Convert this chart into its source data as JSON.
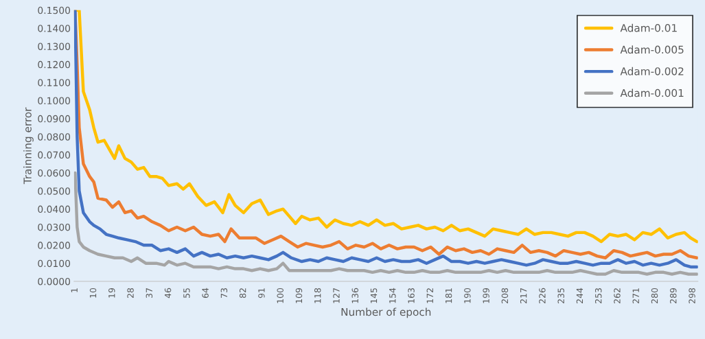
{
  "chart_data": {
    "type": "line",
    "xlabel": "Number of epoch",
    "ylabel": "Trainning error",
    "xlim": [
      0.5,
      300.5
    ],
    "xticks": [
      1,
      10,
      19,
      28,
      37,
      46,
      55,
      64,
      73,
      82,
      91,
      100,
      109,
      118,
      127,
      136,
      145,
      154,
      163,
      172,
      181,
      190,
      199,
      208,
      217,
      226,
      235,
      244,
      253,
      262,
      271,
      280,
      289,
      298
    ],
    "ylim": [
      0,
      0.15
    ],
    "yticks": [
      {
        "value": 0,
        "label": "0.0000"
      },
      {
        "value": 0.01,
        "label": "0.0100"
      },
      {
        "value": 0.02,
        "label": "0.0200"
      },
      {
        "value": 0.03,
        "label": "0.0300"
      },
      {
        "value": 0.04,
        "label": "0.0400"
      },
      {
        "value": 0.05,
        "label": "0.0500"
      },
      {
        "value": 0.06,
        "label": "0.0600"
      },
      {
        "value": 0.07,
        "label": "0.0700"
      },
      {
        "value": 0.08,
        "label": "0.0800"
      },
      {
        "value": 0.09,
        "label": "0.0900"
      },
      {
        "value": 0.1,
        "label": "0.1000"
      },
      {
        "value": 0.11,
        "label": "0.1100"
      },
      {
        "value": 0.12,
        "label": "0.1200"
      },
      {
        "value": 0.13,
        "label": "0.1300"
      },
      {
        "value": 0.14,
        "label": "0.1400"
      },
      {
        "value": 0.15,
        "label": "0.1500"
      }
    ],
    "grid": false,
    "legend": "top right",
    "marker": "none",
    "line_style": "solid",
    "series": [
      {
        "name": "Adam-0.01",
        "color": "#ffc000",
        "x": [
          1,
          3,
          5,
          8,
          10,
          12,
          15,
          18,
          20,
          22,
          25,
          28,
          31,
          34,
          37,
          40,
          43,
          46,
          50,
          53,
          56,
          60,
          64,
          68,
          72,
          75,
          78,
          82,
          86,
          90,
          94,
          98,
          101,
          104,
          107,
          110,
          114,
          118,
          122,
          126,
          130,
          134,
          138,
          142,
          146,
          150,
          154,
          158,
          162,
          166,
          170,
          174,
          178,
          182,
          186,
          190,
          194,
          198,
          202,
          206,
          210,
          214,
          218,
          222,
          226,
          230,
          234,
          238,
          242,
          246,
          250,
          254,
          258,
          262,
          266,
          270,
          274,
          278,
          282,
          286,
          290,
          294,
          297,
          300
        ],
        "values": [
          0.15,
          0.15,
          0.105,
          0.095,
          0.085,
          0.077,
          0.078,
          0.072,
          0.068,
          0.075,
          0.068,
          0.066,
          0.062,
          0.063,
          0.058,
          0.058,
          0.057,
          0.053,
          0.054,
          0.051,
          0.054,
          0.047,
          0.042,
          0.044,
          0.038,
          0.048,
          0.042,
          0.038,
          0.043,
          0.045,
          0.037,
          0.039,
          0.04,
          0.036,
          0.032,
          0.036,
          0.034,
          0.035,
          0.03,
          0.034,
          0.032,
          0.031,
          0.033,
          0.031,
          0.034,
          0.031,
          0.032,
          0.029,
          0.03,
          0.031,
          0.029,
          0.03,
          0.028,
          0.031,
          0.028,
          0.029,
          0.027,
          0.025,
          0.029,
          0.028,
          0.027,
          0.026,
          0.029,
          0.026,
          0.027,
          0.027,
          0.026,
          0.025,
          0.027,
          0.027,
          0.025,
          0.022,
          0.026,
          0.025,
          0.026,
          0.023,
          0.027,
          0.026,
          0.029,
          0.024,
          0.026,
          0.027,
          0.024,
          0.022
        ]
      },
      {
        "name": "Adam-0.005",
        "color": "#ed7d31",
        "x": [
          1,
          2,
          3,
          5,
          8,
          10,
          12,
          16,
          19,
          22,
          25,
          28,
          31,
          34,
          38,
          42,
          46,
          50,
          54,
          58,
          62,
          66,
          70,
          73,
          76,
          80,
          84,
          88,
          92,
          96,
          100,
          104,
          108,
          112,
          116,
          120,
          124,
          128,
          132,
          136,
          140,
          144,
          148,
          152,
          156,
          160,
          164,
          168,
          172,
          176,
          180,
          184,
          188,
          192,
          196,
          200,
          204,
          208,
          212,
          216,
          220,
          224,
          228,
          232,
          236,
          240,
          244,
          248,
          252,
          256,
          260,
          264,
          268,
          272,
          276,
          280,
          284,
          288,
          292,
          296,
          300
        ],
        "values": [
          0.15,
          0.12,
          0.085,
          0.065,
          0.058,
          0.055,
          0.046,
          0.045,
          0.041,
          0.044,
          0.038,
          0.039,
          0.035,
          0.036,
          0.033,
          0.031,
          0.028,
          0.03,
          0.028,
          0.03,
          0.026,
          0.025,
          0.026,
          0.022,
          0.029,
          0.024,
          0.024,
          0.024,
          0.021,
          0.023,
          0.025,
          0.022,
          0.019,
          0.021,
          0.02,
          0.019,
          0.02,
          0.022,
          0.018,
          0.02,
          0.019,
          0.021,
          0.018,
          0.02,
          0.018,
          0.019,
          0.019,
          0.017,
          0.019,
          0.015,
          0.019,
          0.017,
          0.018,
          0.016,
          0.017,
          0.015,
          0.018,
          0.017,
          0.016,
          0.02,
          0.016,
          0.017,
          0.016,
          0.014,
          0.017,
          0.016,
          0.015,
          0.016,
          0.014,
          0.013,
          0.017,
          0.016,
          0.014,
          0.015,
          0.016,
          0.014,
          0.015,
          0.015,
          0.017,
          0.014,
          0.013
        ]
      },
      {
        "name": "Adam-0.002",
        "color": "#4472c4",
        "x": [
          1,
          2,
          3,
          5,
          8,
          10,
          13,
          16,
          19,
          22,
          26,
          30,
          34,
          38,
          42,
          46,
          50,
          54,
          58,
          62,
          66,
          70,
          74,
          78,
          82,
          86,
          90,
          94,
          98,
          101,
          105,
          110,
          114,
          118,
          122,
          126,
          130,
          134,
          138,
          142,
          146,
          150,
          154,
          158,
          162,
          166,
          170,
          174,
          178,
          182,
          186,
          190,
          194,
          198,
          202,
          206,
          210,
          214,
          218,
          222,
          226,
          230,
          234,
          238,
          242,
          246,
          250,
          254,
          258,
          262,
          266,
          270,
          274,
          278,
          282,
          286,
          290,
          294,
          297,
          300
        ],
        "values": [
          0.15,
          0.08,
          0.05,
          0.038,
          0.033,
          0.031,
          0.029,
          0.026,
          0.025,
          0.024,
          0.023,
          0.022,
          0.02,
          0.02,
          0.017,
          0.018,
          0.016,
          0.018,
          0.014,
          0.016,
          0.014,
          0.015,
          0.013,
          0.014,
          0.013,
          0.014,
          0.013,
          0.012,
          0.014,
          0.016,
          0.013,
          0.011,
          0.012,
          0.011,
          0.013,
          0.012,
          0.011,
          0.013,
          0.012,
          0.011,
          0.013,
          0.011,
          0.012,
          0.011,
          0.011,
          0.012,
          0.01,
          0.012,
          0.014,
          0.011,
          0.011,
          0.01,
          0.011,
          0.01,
          0.011,
          0.012,
          0.011,
          0.01,
          0.009,
          0.01,
          0.012,
          0.011,
          0.01,
          0.01,
          0.011,
          0.01,
          0.009,
          0.01,
          0.01,
          0.012,
          0.01,
          0.011,
          0.009,
          0.01,
          0.009,
          0.01,
          0.012,
          0.009,
          0.008,
          0.008
        ]
      },
      {
        "name": "Adam-0.001",
        "color": "#a5a5a5",
        "x": [
          1,
          2,
          3,
          5,
          8,
          12,
          16,
          20,
          24,
          28,
          31,
          35,
          40,
          44,
          46,
          50,
          54,
          58,
          62,
          66,
          70,
          74,
          78,
          82,
          86,
          90,
          94,
          98,
          101,
          104,
          108,
          112,
          116,
          120,
          124,
          128,
          132,
          136,
          140,
          144,
          148,
          152,
          156,
          160,
          164,
          168,
          172,
          176,
          180,
          184,
          188,
          192,
          196,
          200,
          204,
          208,
          212,
          216,
          220,
          224,
          228,
          232,
          236,
          240,
          244,
          248,
          252,
          256,
          260,
          264,
          268,
          272,
          276,
          280,
          284,
          288,
          292,
          296,
          300
        ],
        "values": [
          0.06,
          0.03,
          0.022,
          0.019,
          0.017,
          0.015,
          0.014,
          0.013,
          0.013,
          0.011,
          0.013,
          0.01,
          0.01,
          0.009,
          0.011,
          0.009,
          0.01,
          0.008,
          0.008,
          0.008,
          0.007,
          0.008,
          0.007,
          0.007,
          0.006,
          0.007,
          0.006,
          0.007,
          0.01,
          0.006,
          0.006,
          0.006,
          0.006,
          0.006,
          0.006,
          0.007,
          0.006,
          0.006,
          0.006,
          0.005,
          0.006,
          0.005,
          0.006,
          0.005,
          0.005,
          0.006,
          0.005,
          0.005,
          0.006,
          0.005,
          0.005,
          0.005,
          0.005,
          0.006,
          0.005,
          0.006,
          0.005,
          0.005,
          0.005,
          0.005,
          0.006,
          0.005,
          0.005,
          0.005,
          0.006,
          0.005,
          0.004,
          0.004,
          0.006,
          0.005,
          0.005,
          0.005,
          0.004,
          0.005,
          0.005,
          0.004,
          0.005,
          0.004,
          0.004
        ]
      }
    ]
  }
}
